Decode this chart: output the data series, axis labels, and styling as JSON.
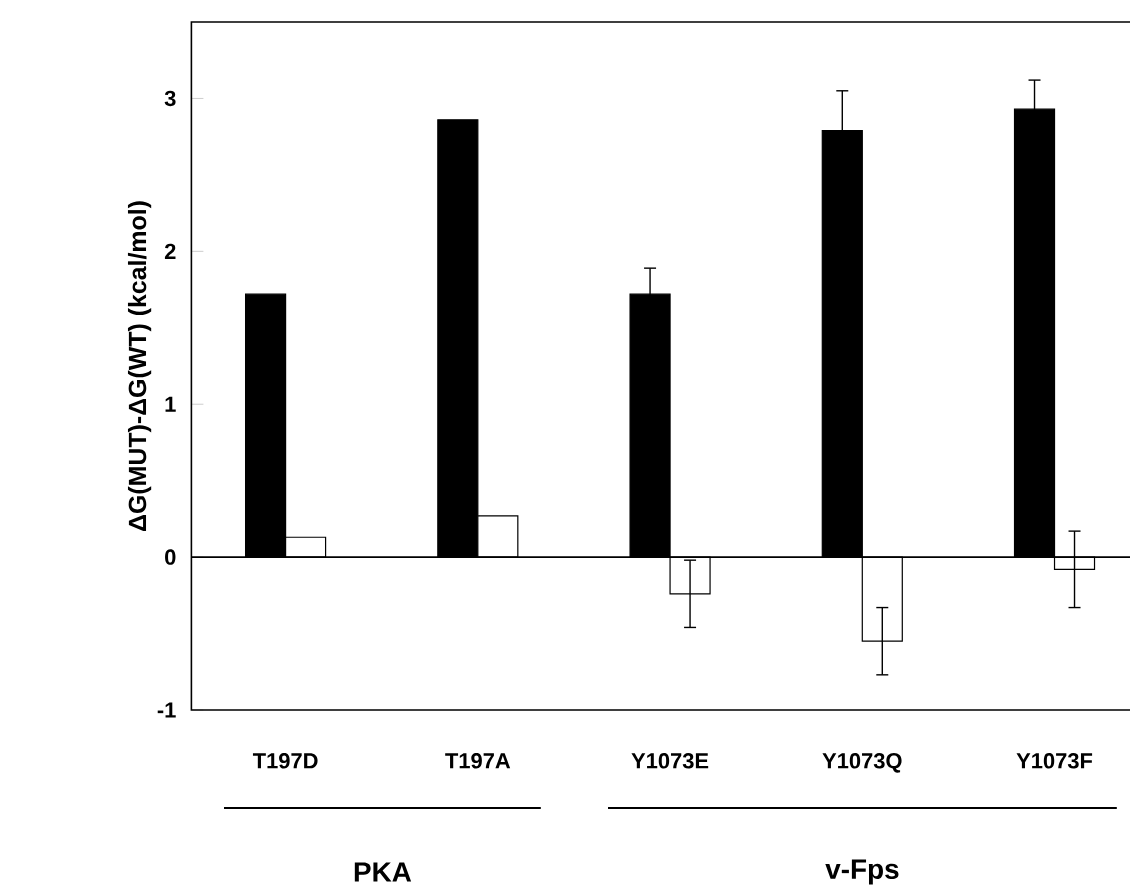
{
  "chart_data": {
    "type": "bar",
    "ylabel": "ΔG(MUT)-ΔG(WT) (kcal/mol)",
    "categories": [
      "T197D",
      "T197A",
      "Y1073E",
      "Y1073Q",
      "Y1073F"
    ],
    "series": [
      {
        "color": "#000000",
        "values": [
          1.72,
          2.86,
          1.72,
          2.79,
          2.93
        ],
        "errors": [
          null,
          null,
          0.17,
          0.26,
          0.19
        ]
      },
      {
        "color": "#ffffff",
        "values": [
          0.13,
          0.27,
          -0.24,
          -0.55,
          -0.08
        ],
        "errors": [
          null,
          null,
          0.22,
          0.22,
          0.25
        ]
      }
    ],
    "ylim": [
      -1,
      3.5
    ],
    "yticks": [
      -1,
      0,
      1,
      2,
      3
    ],
    "ref_lines": [
      {
        "axis": "y",
        "value": 0
      }
    ],
    "annotations": [
      "PKA",
      "v-Fps"
    ]
  }
}
